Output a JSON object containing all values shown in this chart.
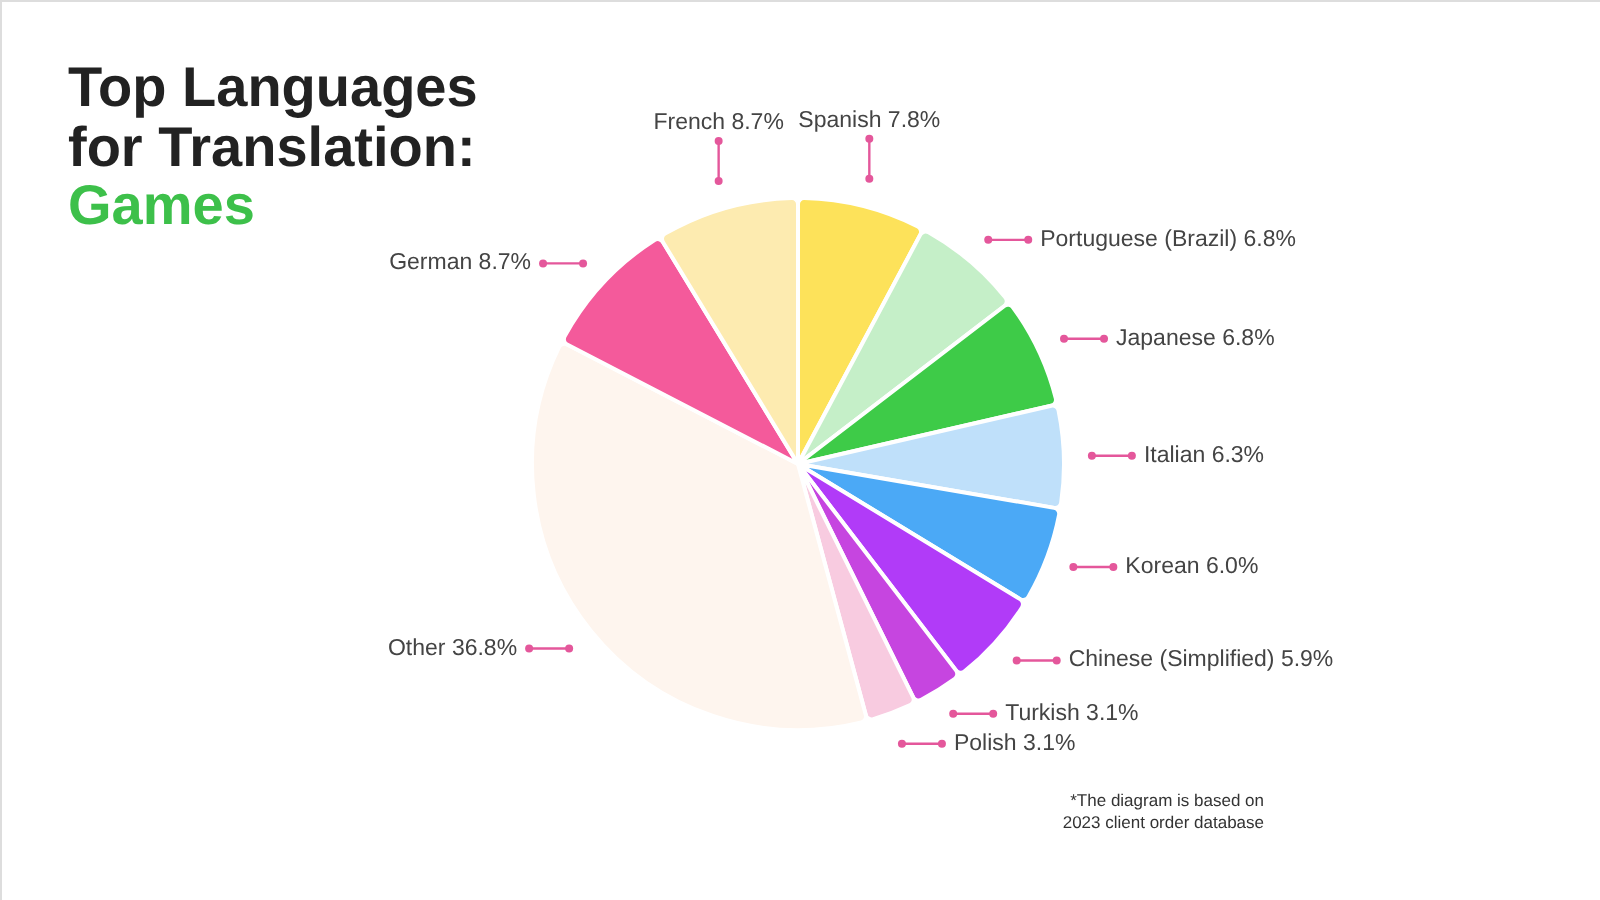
{
  "chart_data": {
    "type": "pie",
    "title": "Top Languages for Translation:",
    "subtitle": "Games",
    "categories": [
      "Spanish",
      "Portuguese (Brazil)",
      "Japanese",
      "Italian",
      "Korean",
      "Chinese (Simplified)",
      "Turkish",
      "Polish",
      "Other",
      "German",
      "French"
    ],
    "values": [
      7.8,
      6.8,
      6.8,
      6.3,
      6.0,
      5.9,
      3.1,
      3.1,
      36.8,
      8.7,
      8.7
    ],
    "value_labels": [
      "7.8%",
      "6.8%",
      "6.8%",
      "6.3%",
      "6.0%",
      "5.9%",
      "3.1%",
      "3.1%",
      "36.8%",
      "8.7%",
      "8.7%"
    ],
    "colors": [
      "#fde25a",
      "#c5efc8",
      "#3ecb48",
      "#bfe0fa",
      "#4ba9f6",
      "#b13bf8",
      "#c645e0",
      "#f8cbe0",
      "#fef5ee",
      "#f45a9b",
      "#fdebb0"
    ],
    "annotations": [
      "*The diagram is based on 2023 client order database"
    ]
  }
}
